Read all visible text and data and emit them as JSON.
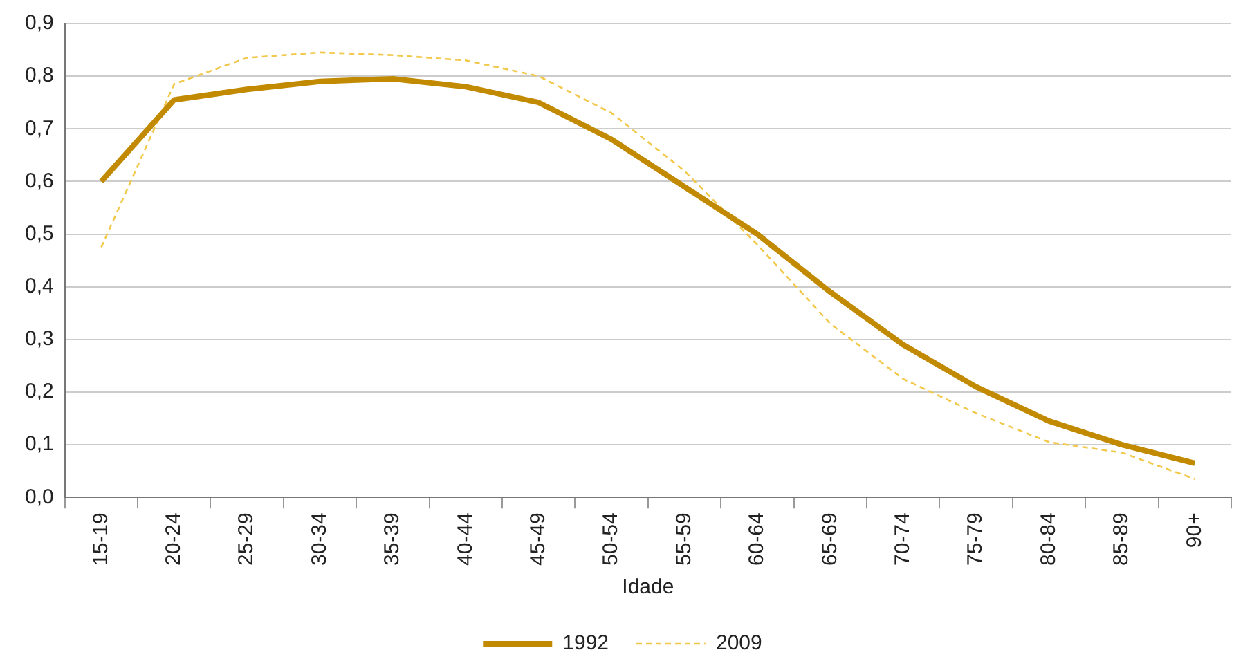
{
  "chart_data": {
    "type": "line",
    "xlabel": "Idade",
    "categories": [
      "15-19",
      "20-24",
      "25-29",
      "30-34",
      "35-39",
      "40-44",
      "45-49",
      "50-54",
      "55-59",
      "60-64",
      "65-69",
      "70-74",
      "75-79",
      "80-84",
      "85-89",
      "90+"
    ],
    "series": [
      {
        "name": "1992",
        "color": "#c18a00",
        "line_style": "solid",
        "values": [
          0.6,
          0.755,
          0.775,
          0.79,
          0.795,
          0.78,
          0.75,
          0.68,
          0.59,
          0.5,
          0.39,
          0.29,
          0.21,
          0.145,
          0.1,
          0.065
        ]
      },
      {
        "name": "2009",
        "color": "#f2c84b",
        "line_style": "dashed",
        "values": [
          0.475,
          0.785,
          0.835,
          0.845,
          0.84,
          0.83,
          0.8,
          0.73,
          0.62,
          0.48,
          0.33,
          0.225,
          0.16,
          0.105,
          0.085,
          0.035
        ]
      }
    ],
    "ylim": [
      0,
      0.9
    ],
    "yticks": [
      {
        "value": 0,
        "label": "0,0"
      },
      {
        "value": 0.1,
        "label": "0,1"
      },
      {
        "value": 0.2,
        "label": "0,2"
      },
      {
        "value": 0.3,
        "label": "0,3"
      },
      {
        "value": 0.4,
        "label": "0,4"
      },
      {
        "value": 0.5,
        "label": "0,5"
      },
      {
        "value": 0.6,
        "label": "0,6"
      },
      {
        "value": 0.7,
        "label": "0,7"
      },
      {
        "value": 0.8,
        "label": "0,8"
      },
      {
        "value": 0.9,
        "label": "0,9"
      }
    ],
    "grid": "y",
    "legend": "bottom",
    "marker": "none"
  }
}
